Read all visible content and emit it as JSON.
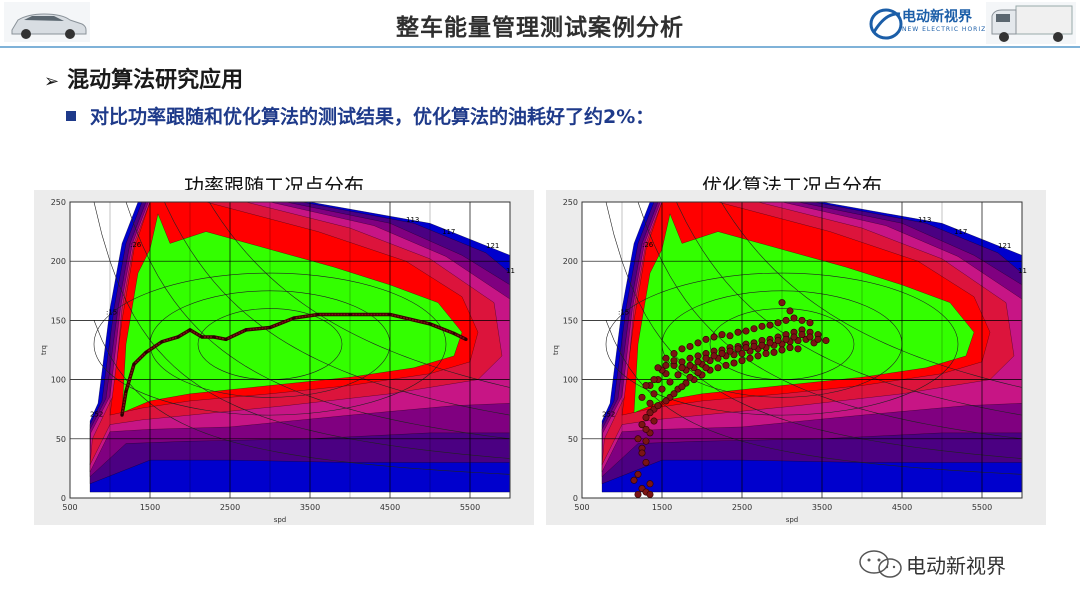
{
  "header": {
    "title": "整车能量管理测试案例分析",
    "logo_cn": "电动新视界",
    "logo_en": "NEW ELECTRIC HORIZON"
  },
  "heading": {
    "level1": "混动算法研究应用",
    "level2": "对比功率跟随和优化算法的测试结果，优化算法的油耗好了约2%："
  },
  "watermark": "电动新视界",
  "colors": {
    "accent": "#1e3a8a",
    "map_green": "#33ff00",
    "map_red": "#ff0000",
    "map_crimson": "#dc143c",
    "map_magenta": "#c71585",
    "map_purple": "#800080",
    "map_indigo": "#4b0082",
    "map_blue": "#0000cd",
    "operating_points": "#7a1414"
  },
  "chart_data": [
    {
      "type": "scatter",
      "title": "功率跟随工况点分布",
      "xlabel": "spd",
      "ylabel": "trq",
      "xlim": [
        500,
        6000
      ],
      "ylim": [
        0,
        250
      ],
      "xticks": [
        500,
        1500,
        2500,
        3500,
        4500,
        5500
      ],
      "yticks": [
        0,
        50,
        100,
        150,
        200,
        250
      ],
      "contour_labels": [
        {
          "text": "113",
          "x": 4700,
          "y": 233
        },
        {
          "text": "117",
          "x": 5150,
          "y": 223
        },
        {
          "text": "121",
          "x": 5700,
          "y": 211
        },
        {
          "text": "11",
          "x": 5950,
          "y": 190
        },
        {
          "text": ":26",
          "x": 1250,
          "y": 212
        },
        {
          "text": ":15",
          "x": 950,
          "y": 155
        },
        {
          "text": "252",
          "x": 750,
          "y": 69
        }
      ],
      "series": [
        {
          "values": [
            [
              1150,
              70
            ],
            [
              1200,
              90
            ],
            [
              1300,
              113
            ],
            [
              1450,
              123
            ],
            [
              1650,
              132
            ],
            [
              1850,
              136
            ],
            [
              2000,
              142
            ],
            [
              2150,
              136
            ],
            [
              2300,
              136
            ],
            [
              2450,
              134
            ],
            [
              2700,
              142
            ],
            [
              3000,
              144
            ],
            [
              3300,
              152
            ],
            [
              3600,
              155
            ],
            [
              4000,
              155
            ],
            [
              4500,
              155
            ],
            [
              5000,
              147
            ],
            [
              5300,
              139
            ],
            [
              5450,
              134
            ]
          ]
        }
      ],
      "grid": true
    },
    {
      "type": "scatter",
      "title": "优化算法工况点分布",
      "xlabel": "spd",
      "ylabel": "trq",
      "xlim": [
        500,
        6000
      ],
      "ylim": [
        0,
        250
      ],
      "xticks": [
        500,
        1500,
        2500,
        3500,
        4500,
        5500
      ],
      "yticks": [
        0,
        50,
        100,
        150,
        200,
        250
      ],
      "contour_labels": [
        {
          "text": "113",
          "x": 4700,
          "y": 233
        },
        {
          "text": "117",
          "x": 5150,
          "y": 223
        },
        {
          "text": "121",
          "x": 5700,
          "y": 211
        },
        {
          "text": "11",
          "x": 5950,
          "y": 190
        },
        {
          "text": ":26",
          "x": 1250,
          "y": 212
        },
        {
          "text": ":15",
          "x": 950,
          "y": 155
        },
        {
          "text": "252",
          "x": 750,
          "y": 69
        }
      ],
      "series": [
        {
          "values": [
            [
              1200,
              3
            ],
            [
              1250,
              8
            ],
            [
              1300,
              5
            ],
            [
              1350,
              12
            ],
            [
              1200,
              20
            ],
            [
              1300,
              30
            ],
            [
              1250,
              42
            ],
            [
              1350,
              55
            ],
            [
              1300,
              68
            ],
            [
              1400,
              75
            ],
            [
              1250,
              85
            ],
            [
              1350,
              95
            ],
            [
              1450,
              100
            ],
            [
              1550,
              105
            ],
            [
              1650,
              112
            ],
            [
              1750,
              115
            ],
            [
              1850,
              118
            ],
            [
              1950,
              120
            ],
            [
              2050,
              122
            ],
            [
              2150,
              124
            ],
            [
              2250,
              125
            ],
            [
              2350,
              127
            ],
            [
              2450,
              128
            ],
            [
              2550,
              130
            ],
            [
              2650,
              131
            ],
            [
              2750,
              133
            ],
            [
              2850,
              134
            ],
            [
              2950,
              136
            ],
            [
              3050,
              138
            ],
            [
              3150,
              140
            ],
            [
              3250,
              142
            ],
            [
              3350,
              140
            ],
            [
              3450,
              138
            ],
            [
              3550,
              133
            ],
            [
              3000,
              165
            ],
            [
              3100,
              158
            ],
            [
              1400,
              88
            ],
            [
              1500,
              92
            ],
            [
              1600,
              98
            ],
            [
              1700,
              104
            ],
            [
              1800,
              108
            ],
            [
              1900,
              110
            ],
            [
              2000,
              113
            ],
            [
              2100,
              116
            ],
            [
              2200,
              118
            ],
            [
              2300,
              120
            ],
            [
              2400,
              121
            ],
            [
              2500,
              122
            ],
            [
              2600,
              124
            ],
            [
              2700,
              126
            ],
            [
              2800,
              127
            ],
            [
              2900,
              129
            ],
            [
              3000,
              130
            ],
            [
              3100,
              132
            ],
            [
              3200,
              133
            ],
            [
              3300,
              134
            ],
            [
              3400,
              131
            ],
            [
              1550,
              118
            ],
            [
              1650,
              122
            ],
            [
              1750,
              126
            ],
            [
              1850,
              128
            ],
            [
              1950,
              131
            ],
            [
              2050,
              134
            ],
            [
              2150,
              136
            ],
            [
              2250,
              138
            ],
            [
              2350,
              137
            ],
            [
              2450,
              140
            ],
            [
              2550,
              141
            ],
            [
              2650,
              143
            ],
            [
              2750,
              145
            ],
            [
              2850,
              146
            ],
            [
              2950,
              148
            ],
            [
              3050,
              150
            ],
            [
              3150,
              152
            ],
            [
              3250,
              150
            ],
            [
              3350,
              148
            ],
            [
              1300,
              95
            ],
            [
              1400,
              100
            ],
            [
              1500,
              108
            ],
            [
              1600,
              85
            ],
            [
              1700,
              92
            ],
            [
              1800,
              97
            ],
            [
              1900,
              100
            ],
            [
              2000,
              104
            ],
            [
              2100,
              108
            ],
            [
              2200,
              110
            ],
            [
              2300,
              112
            ],
            [
              2400,
              114
            ],
            [
              2500,
              116
            ],
            [
              2600,
              118
            ],
            [
              2700,
              120
            ],
            [
              2800,
              122
            ],
            [
              2900,
              123
            ],
            [
              3000,
              125
            ],
            [
              3100,
              127
            ],
            [
              3200,
              126
            ],
            [
              1350,
              80
            ],
            [
              1450,
              110
            ],
            [
              1550,
              112
            ],
            [
              1650,
              116
            ],
            [
              1750,
              110
            ],
            [
              1850,
              112
            ],
            [
              1950,
              115
            ],
            [
              2050,
              118
            ],
            [
              2150,
              120
            ],
            [
              2250,
              122
            ],
            [
              2350,
              124
            ],
            [
              2450,
              126
            ],
            [
              2550,
              127
            ],
            [
              2650,
              128
            ],
            [
              2750,
              129
            ],
            [
              2850,
              131
            ],
            [
              2950,
              133
            ],
            [
              3050,
              134
            ],
            [
              3150,
              136
            ],
            [
              3250,
              138
            ],
            [
              3350,
              136
            ],
            [
              3450,
              134
            ],
            [
              1250,
              62
            ],
            [
              1350,
              72
            ],
            [
              1450,
              78
            ],
            [
              1550,
              82
            ],
            [
              1650,
              88
            ],
            [
              1750,
              94
            ],
            [
              1850,
              102
            ],
            [
              1950,
              106
            ],
            [
              2050,
              110
            ],
            [
              1200,
              50
            ],
            [
              1300,
              58
            ],
            [
              1400,
              65
            ],
            [
              1150,
              15
            ],
            [
              1350,
              3
            ],
            [
              1250,
              38
            ],
            [
              1300,
              48
            ]
          ]
        }
      ],
      "grid": true
    }
  ]
}
